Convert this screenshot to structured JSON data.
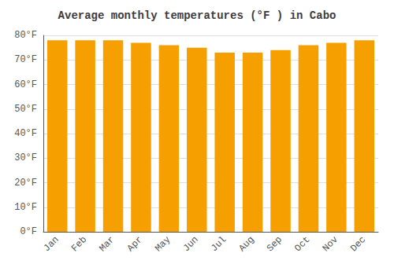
{
  "chart_data": {
    "type": "bar",
    "title": "Average monthly temperatures (°F ) in Cabo",
    "categories": [
      "Jan",
      "Feb",
      "Mar",
      "Apr",
      "May",
      "Jun",
      "Jul",
      "Aug",
      "Sep",
      "Oct",
      "Nov",
      "Dec"
    ],
    "values": [
      78,
      78,
      78,
      77,
      76,
      75,
      73,
      73,
      74,
      76,
      77,
      78
    ],
    "color": "#F5A000",
    "ylim": [
      0,
      80
    ],
    "yticks": [
      {
        "value": 0,
        "label": "0°F"
      },
      {
        "value": 10,
        "label": "10°F"
      },
      {
        "value": 20,
        "label": "20°F"
      },
      {
        "value": 30,
        "label": "30°F"
      },
      {
        "value": 40,
        "label": "40°F"
      },
      {
        "value": 50,
        "label": "50°F"
      },
      {
        "value": 60,
        "label": "60°F"
      },
      {
        "value": 70,
        "label": "70°F"
      },
      {
        "value": 80,
        "label": "80°F"
      }
    ],
    "grid": true
  }
}
